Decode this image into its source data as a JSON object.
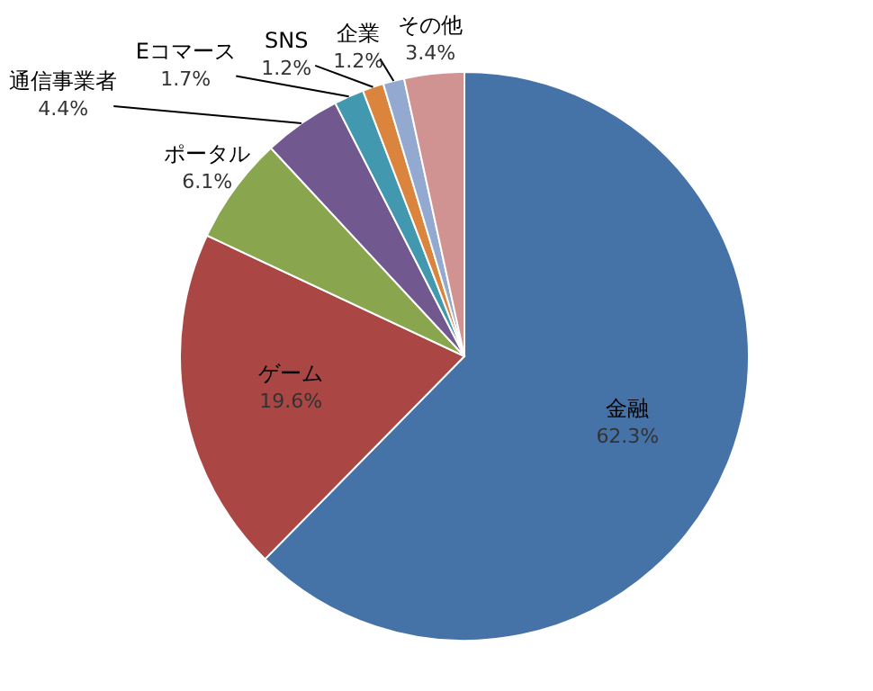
{
  "chart_data": {
    "type": "pie",
    "categories": [
      "金融",
      "ゲーム",
      "ポータル",
      "通信事業者",
      "Eコマース",
      "SNS",
      "企業",
      "その他"
    ],
    "values": [
      62.3,
      19.6,
      6.1,
      4.4,
      1.7,
      1.2,
      1.2,
      3.4
    ],
    "value_labels": [
      "62.3%",
      "19.6%",
      "6.1%",
      "4.4%",
      "1.7%",
      "1.2%",
      "1.2%",
      "3.4%"
    ],
    "colors": [
      "#4572a7",
      "#aa4643",
      "#89a54e",
      "#71588f",
      "#4198af",
      "#db843d",
      "#93a9cf",
      "#d19392"
    ]
  }
}
